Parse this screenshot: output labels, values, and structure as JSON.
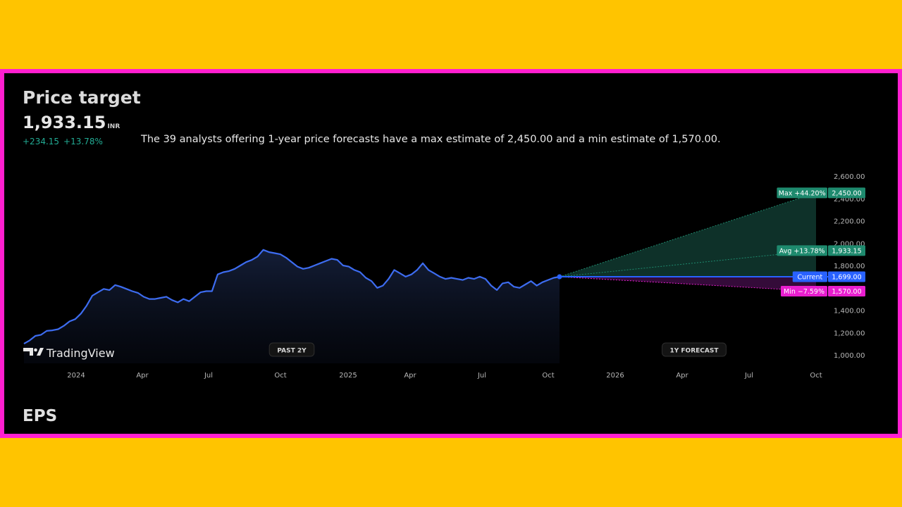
{
  "header": {
    "title": "Price target",
    "price": "1,933.15",
    "currency": "INR",
    "change_abs": "+234.15",
    "change_pct": "+13.78%",
    "summary": "The 39 analysts offering 1-year price forecasts have a max estimate of 2,450.00 and a min estimate of 1,570.00."
  },
  "branding": {
    "logo_text": "TradingView"
  },
  "section_next": {
    "title": "EPS"
  },
  "colors": {
    "background": "#000000",
    "page": "#ffc400",
    "frame": "#ff1fd0",
    "line": "#3d6cf0",
    "max": "#1e8a6e",
    "avg": "#1e8a6e",
    "current": "#2962ff",
    "min": "#e91ecf",
    "positive": "#22ab94"
  },
  "chart_data": {
    "type": "line",
    "x_axis": {
      "labels": [
        "2024",
        "Apr",
        "Jul",
        "Oct",
        "2025",
        "Apr",
        "Jul",
        "Oct",
        "2026",
        "Apr",
        "Jul",
        "Oct"
      ]
    },
    "y_axis": {
      "ticks": [
        "2,600.00",
        "2,400.00",
        "2,200.00",
        "2,000.00",
        "1,800.00",
        "1,600.00",
        "1,400.00",
        "1,200.00",
        "1,000.00"
      ],
      "range": [
        1000,
        2600
      ]
    },
    "region_labels": {
      "past": "PAST 2Y",
      "forecast": "1Y FORECAST"
    },
    "history": {
      "start": "2023-10",
      "end": "2025-10",
      "values": [
        1100,
        1130,
        1170,
        1180,
        1215,
        1220,
        1230,
        1260,
        1300,
        1320,
        1370,
        1440,
        1530,
        1560,
        1590,
        1580,
        1625,
        1610,
        1590,
        1570,
        1555,
        1520,
        1500,
        1500,
        1510,
        1520,
        1490,
        1470,
        1500,
        1480,
        1520,
        1560,
        1570,
        1570,
        1720,
        1740,
        1750,
        1770,
        1800,
        1830,
        1850,
        1880,
        1940,
        1920,
        1910,
        1900,
        1870,
        1830,
        1790,
        1770,
        1780,
        1800,
        1820,
        1840,
        1860,
        1850,
        1800,
        1790,
        1760,
        1740,
        1690,
        1660,
        1600,
        1620,
        1680,
        1760,
        1730,
        1700,
        1720,
        1760,
        1820,
        1760,
        1730,
        1700,
        1680,
        1690,
        1680,
        1670,
        1690,
        1680,
        1700,
        1680,
        1620,
        1580,
        1640,
        1650,
        1610,
        1600,
        1630,
        1660,
        1620,
        1650,
        1670,
        1690,
        1699
      ]
    },
    "forecast": {
      "from": "2025-10",
      "to": "2026-10",
      "max": {
        "label": "Max +44.20%",
        "value": 2450,
        "value_text": "2,450.00"
      },
      "avg": {
        "label": "Avg +13.78%",
        "value": 1933.15,
        "value_text": "1,933.15"
      },
      "current": {
        "label": "Current",
        "value": 1699,
        "value_text": "1,699.00"
      },
      "min": {
        "label": "Min −7.59%",
        "value": 1570,
        "value_text": "1,570.00"
      }
    }
  }
}
